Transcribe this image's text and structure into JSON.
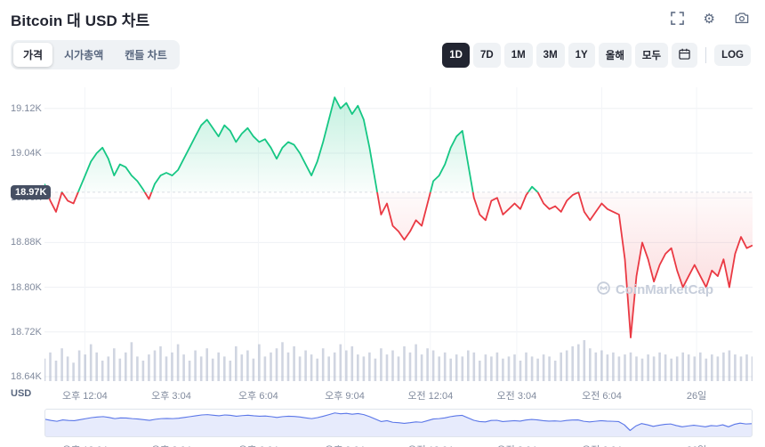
{
  "header": {
    "title": "Bitcoin 대 USD 차트"
  },
  "controls": {
    "chart_tabs": [
      {
        "name": "tab-price",
        "label": "가격",
        "active": true
      },
      {
        "name": "tab-marketcap",
        "label": "시가총액",
        "active": false
      },
      {
        "name": "tab-candle",
        "label": "캔들 차트",
        "active": false
      }
    ],
    "range_buttons": [
      {
        "name": "range-1d",
        "label": "1D",
        "active": true
      },
      {
        "name": "range-7d",
        "label": "7D",
        "active": false
      },
      {
        "name": "range-1m",
        "label": "1M",
        "active": false
      },
      {
        "name": "range-3m",
        "label": "3M",
        "active": false
      },
      {
        "name": "range-1y",
        "label": "1Y",
        "active": false
      },
      {
        "name": "range-ytd",
        "label": "올해",
        "active": false
      },
      {
        "name": "range-all",
        "label": "모두",
        "active": false
      }
    ],
    "log_label": "LOG"
  },
  "watermark": "CoinMarketCap",
  "chart_data": {
    "type": "line",
    "title": "Bitcoin 대 USD 차트",
    "currency_label": "USD",
    "unit": "K USD",
    "baseline": 18.97,
    "baseline_label": "18.97K",
    "ylim": [
      18.632,
      19.158
    ],
    "grid": true,
    "y_ticks": [
      19.12,
      19.04,
      18.96,
      18.88,
      18.8,
      18.72,
      18.64
    ],
    "y_tick_labels": [
      "19.12K",
      "19.04K",
      "18.96K",
      "18.88K",
      "18.80K",
      "18.72K",
      "18.64K"
    ],
    "x_ticks": [
      {
        "label": "오후 12:04",
        "pos": 0.057
      },
      {
        "label": "오후 3:04",
        "pos": 0.179
      },
      {
        "label": "오후 6:04",
        "pos": 0.302
      },
      {
        "label": "오후 9:04",
        "pos": 0.424
      },
      {
        "label": "오전 12:04",
        "pos": 0.545
      },
      {
        "label": "오전 3:04",
        "pos": 0.667
      },
      {
        "label": "오전 6:04",
        "pos": 0.787
      },
      {
        "label": "26일",
        "pos": 0.921
      }
    ],
    "prices": [
      18.985,
      18.955,
      18.935,
      18.97,
      18.955,
      18.95,
      18.975,
      19.0,
      19.025,
      19.04,
      19.05,
      19.03,
      19.0,
      19.02,
      19.015,
      19.0,
      18.99,
      18.975,
      18.958,
      18.985,
      19.0,
      19.005,
      19.0,
      19.01,
      19.03,
      19.05,
      19.07,
      19.09,
      19.1,
      19.085,
      19.07,
      19.09,
      19.08,
      19.06,
      19.075,
      19.085,
      19.07,
      19.06,
      19.065,
      19.05,
      19.03,
      19.05,
      19.06,
      19.055,
      19.04,
      19.02,
      19.0,
      19.025,
      19.06,
      19.1,
      19.14,
      19.12,
      19.13,
      19.11,
      19.125,
      19.1,
      19.05,
      18.99,
      18.93,
      18.95,
      18.91,
      18.9,
      18.885,
      18.9,
      18.92,
      18.91,
      18.95,
      18.99,
      19.0,
      19.02,
      19.05,
      19.07,
      19.08,
      19.02,
      18.96,
      18.93,
      18.92,
      18.955,
      18.96,
      18.93,
      18.94,
      18.95,
      18.94,
      18.965,
      18.98,
      18.97,
      18.95,
      18.94,
      18.945,
      18.935,
      18.955,
      18.965,
      18.97,
      18.935,
      18.92,
      18.935,
      18.95,
      18.94,
      18.935,
      18.93,
      18.85,
      18.71,
      18.82,
      18.88,
      18.85,
      18.81,
      18.84,
      18.86,
      18.87,
      18.83,
      18.8,
      18.82,
      18.84,
      18.82,
      18.8,
      18.83,
      18.82,
      18.85,
      18.8,
      18.86,
      18.89,
      18.87,
      18.875
    ],
    "volume": [
      0.55,
      0.7,
      0.5,
      0.8,
      0.6,
      0.45,
      0.75,
      0.65,
      0.9,
      0.7,
      0.5,
      0.6,
      0.8,
      0.55,
      0.7,
      0.95,
      0.6,
      0.5,
      0.65,
      0.75,
      0.85,
      0.6,
      0.7,
      0.9,
      0.65,
      0.5,
      0.75,
      0.6,
      0.8,
      0.55,
      0.7,
      0.6,
      0.5,
      0.85,
      0.65,
      0.75,
      0.55,
      0.9,
      0.6,
      0.7,
      0.8,
      0.95,
      0.7,
      0.85,
      0.6,
      0.75,
      0.65,
      0.55,
      0.8,
      0.6,
      0.7,
      0.9,
      0.75,
      0.85,
      0.65,
      0.6,
      0.7,
      0.55,
      0.8,
      0.65,
      0.75,
      0.6,
      0.85,
      0.7,
      0.9,
      0.65,
      0.8,
      0.75,
      0.6,
      0.7,
      0.55,
      0.65,
      0.6,
      0.75,
      0.7,
      0.5,
      0.65,
      0.6,
      0.7,
      0.55,
      0.6,
      0.65,
      0.5,
      0.7,
      0.6,
      0.55,
      0.65,
      0.6,
      0.5,
      0.7,
      0.75,
      0.85,
      0.9,
      1.0,
      0.8,
      0.7,
      0.75,
      0.65,
      0.7,
      0.6,
      0.65,
      0.7,
      0.6,
      0.55,
      0.65,
      0.6,
      0.7,
      0.65,
      0.55,
      0.6,
      0.7,
      0.65,
      0.6,
      0.7,
      0.55,
      0.65,
      0.6,
      0.7,
      0.75,
      0.65,
      0.6,
      0.65,
      0.6
    ],
    "colors": {
      "up": "#16c784",
      "down": "#ea3943",
      "volume_bar": "#a2abc4",
      "navigator_line": "#5b77e8",
      "badge_bg": "#464f63",
      "active_range_bg": "#222531",
      "axis_text": "#808a9d"
    }
  }
}
